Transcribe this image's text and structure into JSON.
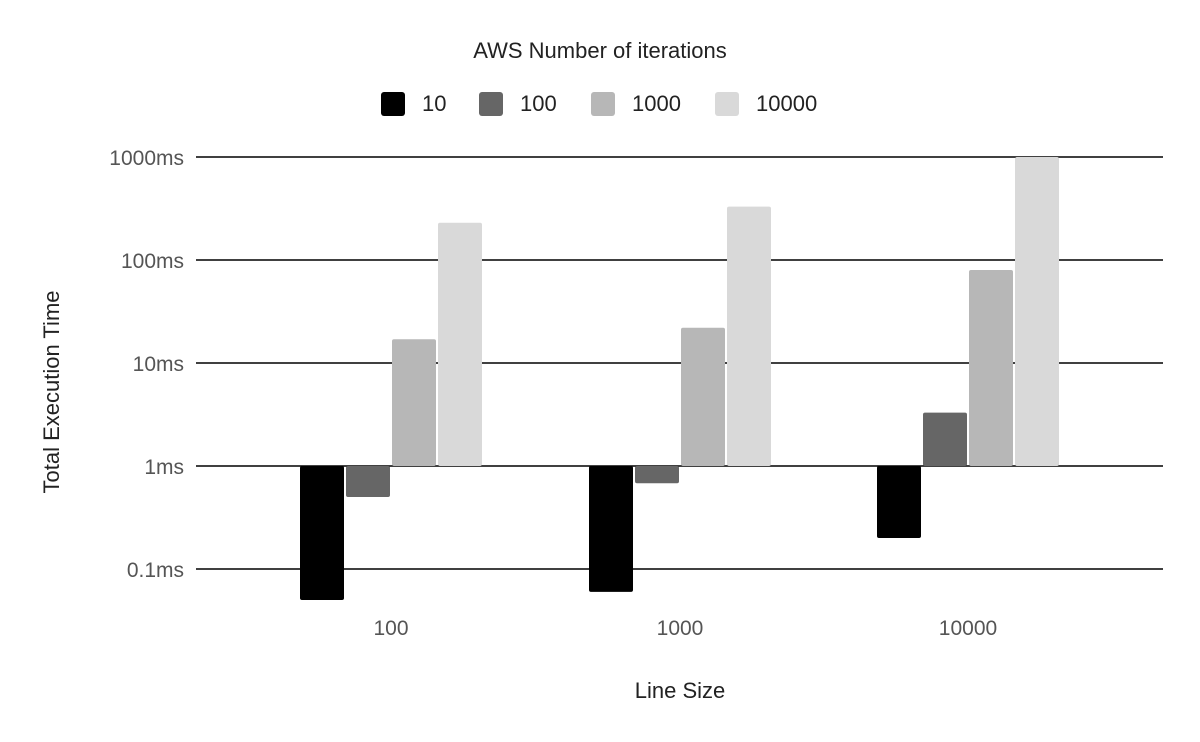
{
  "chart_data": {
    "type": "bar",
    "title": "AWS Number of iterations",
    "xlabel": "Line Size",
    "ylabel": "Total Execution Time",
    "y_scale": "log",
    "y_baseline": 1,
    "ylim": [
      0.05,
      1000
    ],
    "y_ticks": [
      {
        "value": 0.1,
        "label": "0.1ms"
      },
      {
        "value": 1,
        "label": "1ms"
      },
      {
        "value": 10,
        "label": "10ms"
      },
      {
        "value": 100,
        "label": "100ms"
      },
      {
        "value": 1000,
        "label": "1000ms"
      }
    ],
    "grid": true,
    "legend_position": "top",
    "categories": [
      "100",
      "1000",
      "10000"
    ],
    "series": [
      {
        "name": "10",
        "color": "#000000",
        "values": [
          0.05,
          0.06,
          0.2
        ]
      },
      {
        "name": "100",
        "color": "#666666",
        "values": [
          0.5,
          0.68,
          3.3
        ]
      },
      {
        "name": "1000",
        "color": "#b7b7b7",
        "values": [
          17,
          22,
          80
        ]
      },
      {
        "name": "10000",
        "color": "#d9d9d9",
        "values": [
          230,
          330,
          1000
        ]
      }
    ]
  }
}
